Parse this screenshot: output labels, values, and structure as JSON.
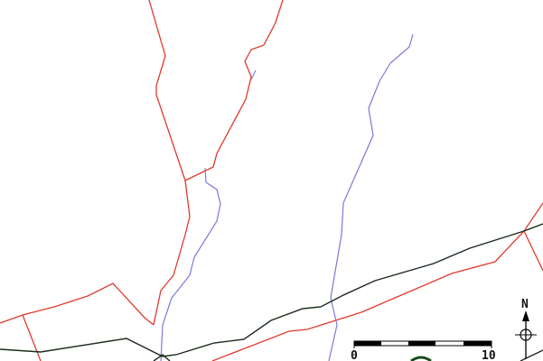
{
  "map": {
    "colors": {
      "road": "#e03a2e",
      "river": "#7a7ad8",
      "rail": "#1a2a1a"
    },
    "scale_bar": {
      "start_label": "0",
      "end_label": "10",
      "segments": 4
    },
    "north_arrow": {
      "label": "N"
    }
  }
}
